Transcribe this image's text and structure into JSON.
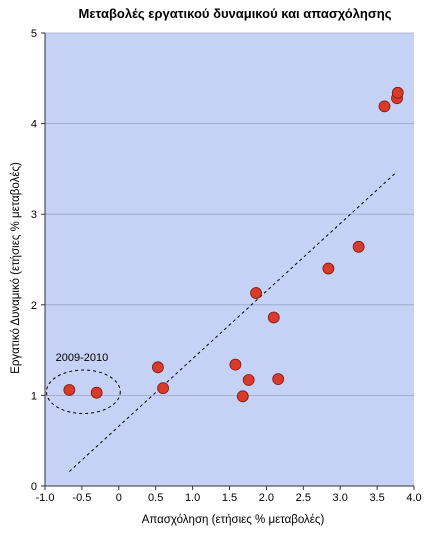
{
  "chart_data": {
    "type": "scatter",
    "title": "Μεταβολές εργατικού δυναμικού και απασχόλησης",
    "xlabel": "Απασχόληση (ετήσιες % μεταβολές)",
    "ylabel": "Εργατικό Δυναμικό (ετήσιες % μεταβολές)",
    "xlim": [
      -1.0,
      4.0
    ],
    "ylim": [
      0,
      5
    ],
    "xticks": [
      "-1.0",
      "-0.5",
      "0",
      "0.5",
      "1.0",
      "1.5",
      "2.0",
      "2.5",
      "3.0",
      "3.5",
      "4.0"
    ],
    "xtick_values": [
      -1.0,
      -0.5,
      0,
      0.5,
      1.0,
      1.5,
      2.0,
      2.5,
      3.0,
      3.5,
      4.0
    ],
    "yticks": [
      "0",
      "1",
      "2",
      "3",
      "4",
      "5"
    ],
    "ytick_values": [
      0,
      1,
      2,
      3,
      4,
      5
    ],
    "grid": "horizontal",
    "plot_background": "#c6d2f5",
    "marker_color": "#d93a2b",
    "points": [
      {
        "x": -0.67,
        "y": 1.06
      },
      {
        "x": -0.3,
        "y": 1.03
      },
      {
        "x": 0.53,
        "y": 1.31
      },
      {
        "x": 0.6,
        "y": 1.08
      },
      {
        "x": 1.58,
        "y": 1.34
      },
      {
        "x": 1.68,
        "y": 0.99
      },
      {
        "x": 1.76,
        "y": 1.17
      },
      {
        "x": 1.86,
        "y": 2.13
      },
      {
        "x": 2.1,
        "y": 1.86
      },
      {
        "x": 2.16,
        "y": 1.18
      },
      {
        "x": 2.84,
        "y": 2.4
      },
      {
        "x": 3.25,
        "y": 2.64
      },
      {
        "x": 3.6,
        "y": 4.19
      },
      {
        "x": 3.77,
        "y": 4.28
      },
      {
        "x": 3.78,
        "y": 4.34
      }
    ],
    "trendline": {
      "style": "dashed",
      "x": [
        -0.67,
        3.77
      ],
      "y": [
        0.16,
        3.47
      ]
    },
    "annotations": [
      {
        "text": "2009-2010",
        "x": -0.5,
        "y": 1.38,
        "ellipse": {
          "cx": -0.48,
          "cy": 1.04,
          "rx": 0.5,
          "ry": 0.24
        }
      }
    ]
  }
}
